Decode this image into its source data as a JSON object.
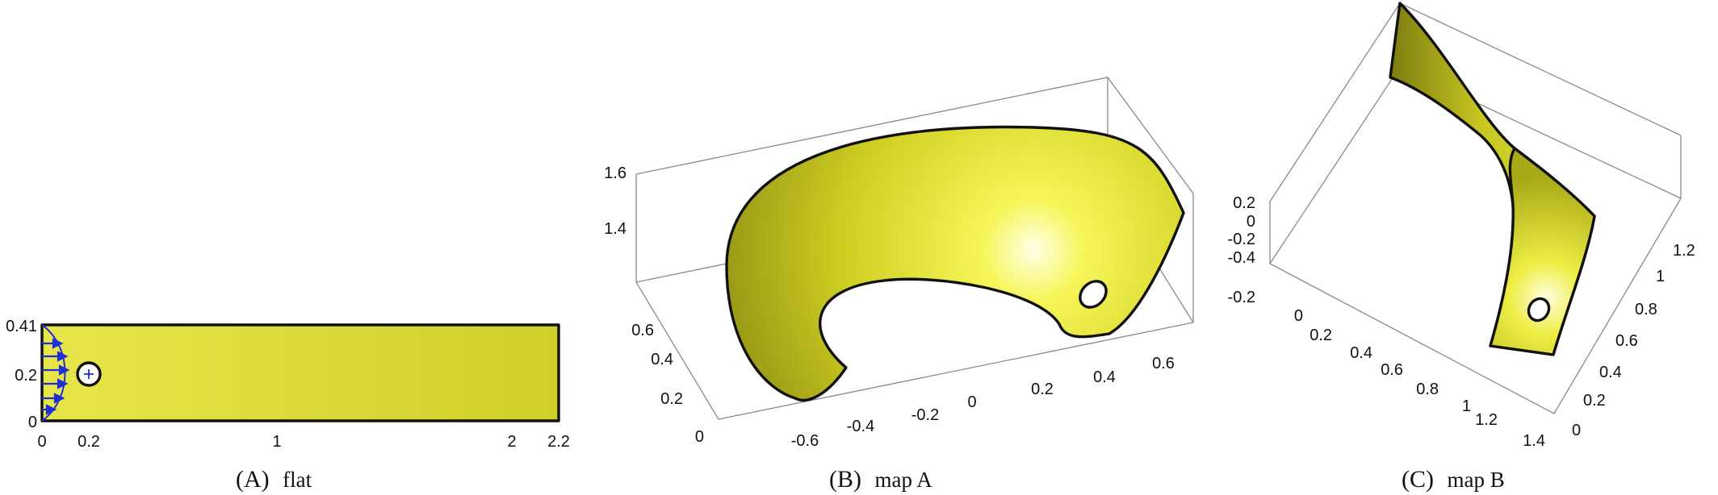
{
  "panels": [
    {
      "letter": "(A)",
      "name": "flat",
      "x_ticks": [
        "0",
        "0.2",
        "1",
        "2",
        "2.2"
      ],
      "y_ticks": [
        "0",
        "0.2",
        "0.41"
      ]
    },
    {
      "letter": "(B)",
      "name": "map A",
      "z_ticks": [
        "1.4",
        "1.6"
      ],
      "y_ticks": [
        "0",
        "0.2",
        "0.4",
        "0.6"
      ],
      "x_ticks": [
        "-0.6",
        "-0.4",
        "-0.2",
        "0",
        "0.2",
        "0.4",
        "0.6"
      ]
    },
    {
      "letter": "(C)",
      "name": "map B",
      "z_ticks": [
        "0.2",
        "0",
        "-0.2",
        "-0.4"
      ],
      "x_ticks": [
        "-0.2",
        "0",
        "0.2",
        "0.4",
        "0.6",
        "0.8",
        "1",
        "1.2",
        "1.4"
      ],
      "y_ticks": [
        "0",
        "0.2",
        "0.4",
        "0.6",
        "0.8",
        "1",
        "1.2"
      ]
    }
  ],
  "colors": {
    "surface": "#dede38",
    "outline": "#111111",
    "inflow_arrows": "#1f2fd6",
    "box": "#8a8a8a"
  }
}
